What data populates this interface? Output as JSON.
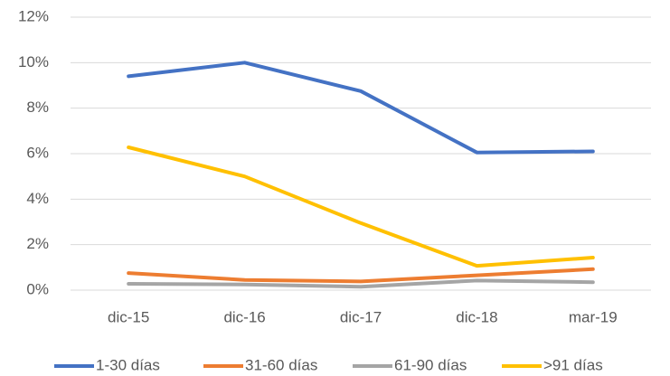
{
  "chart_data": {
    "type": "line",
    "categories": [
      "dic-15",
      "dic-16",
      "dic-17",
      "dic-18",
      "mar-19"
    ],
    "series": [
      {
        "name": "1-30 días",
        "color": "#4472c4",
        "values": [
          9.4,
          10.0,
          8.75,
          6.05,
          6.1
        ]
      },
      {
        "name": "31-60 días",
        "color": "#ed7d31",
        "values": [
          0.75,
          0.45,
          0.38,
          0.65,
          0.92
        ]
      },
      {
        "name": "61-90 días",
        "color": "#a5a5a5",
        "values": [
          0.28,
          0.25,
          0.15,
          0.42,
          0.35
        ]
      },
      {
        "name": ">91 días",
        "color": "#ffc000",
        "values": [
          6.28,
          5.0,
          2.95,
          1.07,
          1.43
        ]
      }
    ],
    "ylim": [
      0,
      12
    ],
    "yticks": [
      {
        "value": 0,
        "label": "0%"
      },
      {
        "value": 2,
        "label": "2%"
      },
      {
        "value": 4,
        "label": "4%"
      },
      {
        "value": 6,
        "label": "6%"
      },
      {
        "value": 8,
        "label": "8%"
      },
      {
        "value": 10,
        "label": "10%"
      },
      {
        "value": 12,
        "label": "12%"
      }
    ],
    "grid": true,
    "legend": "bottom"
  }
}
